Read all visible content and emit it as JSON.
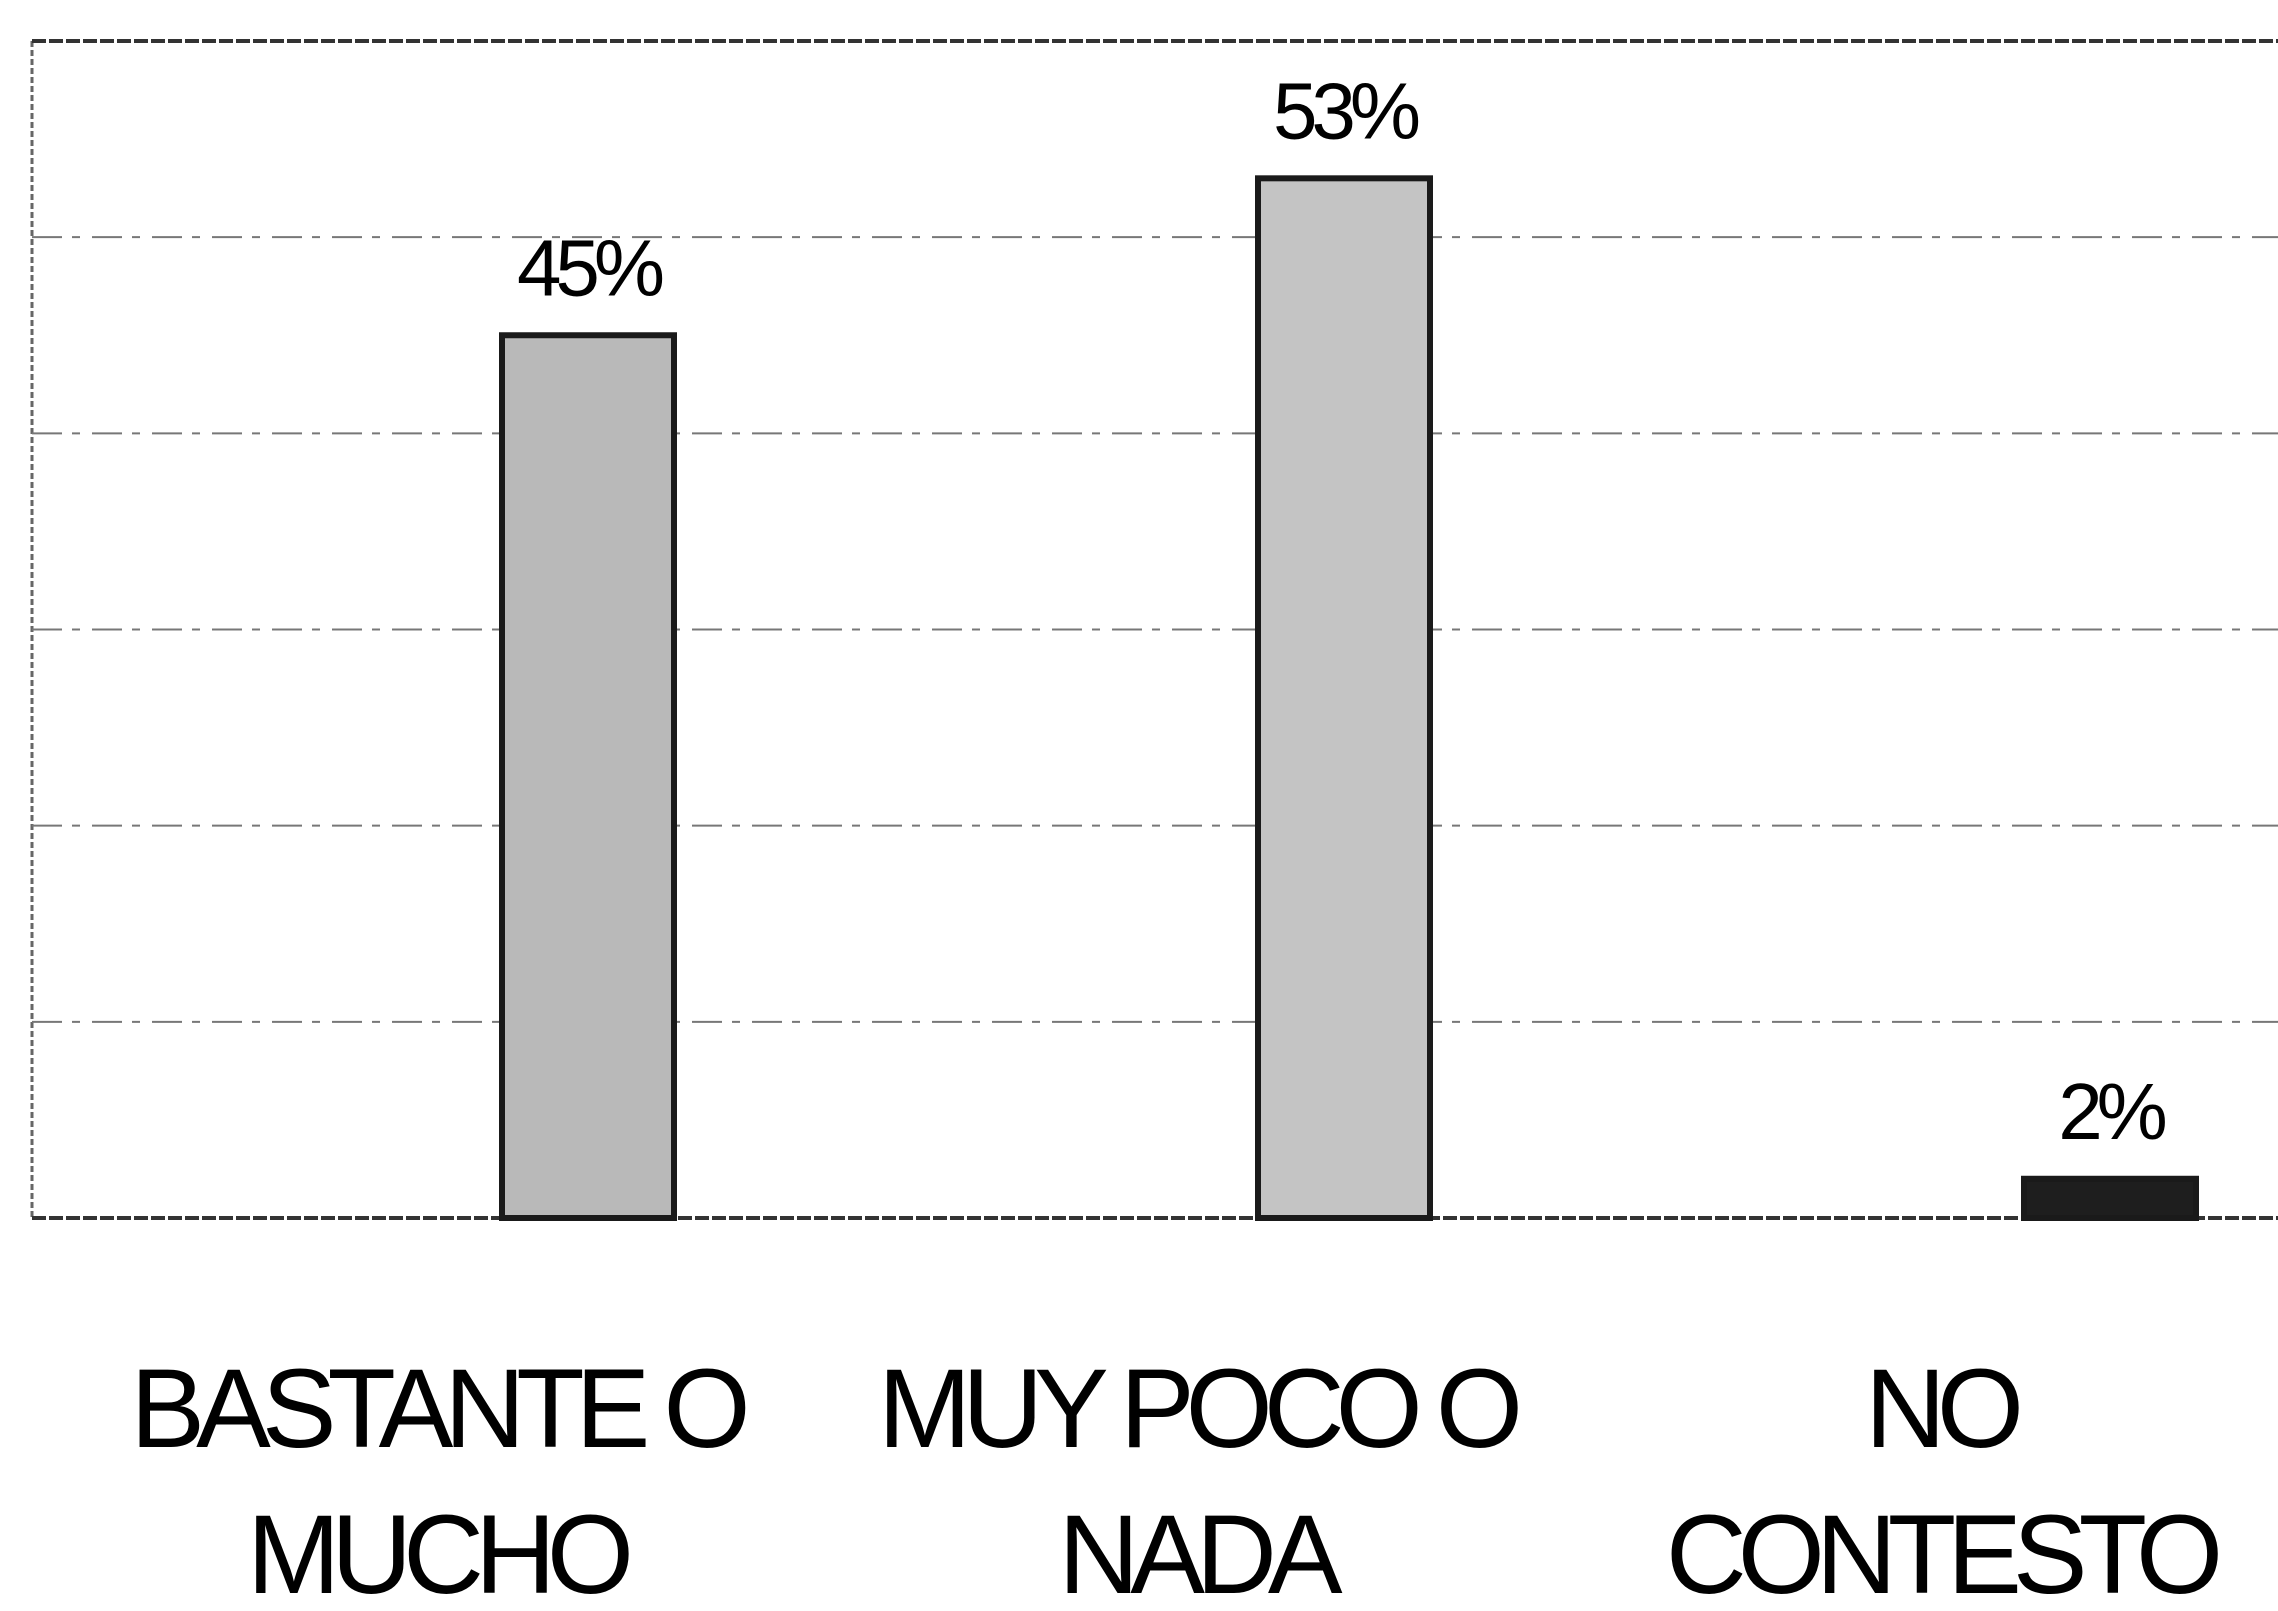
{
  "chart_data": {
    "type": "bar",
    "categories": [
      [
        "BASTANTE O",
        "MUCHO"
      ],
      [
        "MUY POCO O",
        "NADA"
      ],
      [
        "NO",
        "CONTESTO"
      ]
    ],
    "values": [
      45,
      53,
      2
    ],
    "value_labels": [
      "45%",
      "53%",
      "2%"
    ],
    "colors": [
      "#b9b9b9",
      "#c4c4c4",
      "#1e1e1e"
    ],
    "ylim": [
      0,
      60
    ],
    "yticks": [
      0,
      10,
      20,
      30,
      40,
      50,
      60
    ],
    "grid": true
  }
}
